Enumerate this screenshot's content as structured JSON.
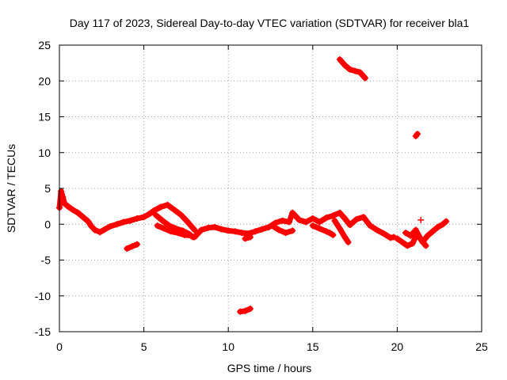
{
  "chart_data": {
    "type": "scatter",
    "title": "Day 117 of 2023, Sidereal Day-to-day VTEC variation (SDTVAR) for receiver bla1",
    "xlabel": "GPS time / hours",
    "ylabel": "SDTVAR / TECUs",
    "xlim": [
      0,
      25
    ],
    "ylim": [
      -15,
      25
    ],
    "x_ticks": [
      "0",
      "5",
      "10",
      "15",
      "20",
      "25"
    ],
    "y_ticks": [
      "-15",
      "-10",
      "-5",
      "0",
      "5",
      "10",
      "15",
      "20",
      "25"
    ],
    "grid": true,
    "series_color": "#ff0000",
    "series": [
      {
        "name": "bla1 SDTVAR",
        "segments": [
          {
            "x": [
              0.0,
              0.1,
              0.2,
              0.3,
              0.5,
              0.8,
              1.1,
              1.4,
              1.7,
              1.9,
              2.1,
              2.4,
              2.7,
              3.0,
              3.4,
              3.8,
              4.2,
              4.6,
              5.0,
              5.3,
              5.6,
              6.0,
              6.4,
              6.8,
              7.2,
              7.6,
              8.0
            ],
            "y": [
              2.3,
              4.6,
              3.8,
              2.9,
              2.5,
              2.0,
              1.6,
              1.0,
              0.4,
              -0.3,
              -0.8,
              -1.1,
              -0.7,
              -0.3,
              0.0,
              0.3,
              0.5,
              0.8,
              1.0,
              1.4,
              1.9,
              2.4,
              2.7,
              2.0,
              1.3,
              0.3,
              -0.8
            ]
          },
          {
            "x": [
              5.7,
              6.1,
              6.5,
              6.9,
              7.3,
              7.7,
              7.9
            ],
            "y": [
              1.3,
              0.5,
              -0.2,
              -0.6,
              -0.9,
              -1.4,
              -1.8
            ]
          },
          {
            "x": [
              5.8,
              6.2,
              6.6,
              7.0,
              7.4,
              7.8
            ],
            "y": [
              -0.2,
              -0.6,
              -1.0,
              -1.2,
              -1.5,
              -1.6
            ]
          },
          {
            "x": [
              8.0,
              8.4,
              8.8,
              9.2,
              9.6,
              10.0,
              10.4,
              10.8,
              11.2,
              11.6,
              12.0,
              12.4,
              12.8,
              13.2,
              13.6,
              13.8,
              14.2,
              14.6,
              15.0,
              15.4,
              15.8,
              16.2,
              16.6,
              16.9,
              17.2,
              17.6,
              18.0,
              18.4,
              18.8,
              19.2,
              19.6,
              19.8
            ],
            "y": [
              -1.8,
              -0.8,
              -0.5,
              -0.4,
              -0.7,
              -0.9,
              -1.0,
              -1.2,
              -1.3,
              -1.0,
              -0.7,
              -0.4,
              0.2,
              0.5,
              0.3,
              1.6,
              0.6,
              0.3,
              0.8,
              0.3,
              0.9,
              1.2,
              1.6,
              0.8,
              -0.1,
              0.7,
              1.0,
              -0.2,
              -0.8,
              -1.3,
              -1.9,
              -1.8
            ]
          },
          {
            "x": [
              12.6,
              13.0,
              13.4,
              13.8
            ],
            "y": [
              -0.2,
              -0.8,
              -1.2,
              -0.9
            ]
          },
          {
            "x": [
              15.0,
              15.4,
              15.8,
              16.0,
              16.2
            ],
            "y": [
              -0.2,
              -0.6,
              -1.0,
              -1.2,
              -1.5
            ]
          },
          {
            "x": [
              16.3,
              16.6,
              16.9,
              17.1
            ],
            "y": [
              0.5,
              -0.6,
              -1.8,
              -2.5
            ]
          },
          {
            "x": [
              4.0,
              4.3,
              4.6
            ],
            "y": [
              -3.4,
              -3.1,
              -2.8
            ]
          },
          {
            "x": [
              10.7,
              11.0,
              11.3
            ],
            "y": [
              -12.2,
              -12.1,
              -11.8
            ]
          },
          {
            "x": [
              11.0,
              11.3
            ],
            "y": [
              -2.0,
              -1.8
            ]
          },
          {
            "x": [
              16.6,
              16.9,
              17.2,
              17.5,
              17.8,
              18.1
            ],
            "y": [
              23.0,
              22.2,
              21.6,
              21.4,
              21.2,
              20.4
            ]
          },
          {
            "x": [
              21.1,
              21.2
            ],
            "y": [
              12.3,
              12.6
            ]
          },
          {
            "x": [
              20.0,
              20.3,
              20.6,
              20.9,
              21.2,
              21.5,
              21.8,
              22.1,
              22.4,
              22.7,
              22.9
            ],
            "y": [
              -2.0,
              -2.5,
              -3.0,
              -2.7,
              -1.3,
              -2.5,
              -1.6,
              -1.0,
              -0.4,
              0.0,
              0.4
            ]
          },
          {
            "x": [
              20.5,
              20.8,
              21.1,
              21.4,
              21.7
            ],
            "y": [
              -1.2,
              -1.6,
              -0.8,
              -2.1,
              -3.0
            ]
          },
          {
            "x": [
              21.4
            ],
            "y": [
              0.6
            ]
          }
        ]
      }
    ]
  }
}
